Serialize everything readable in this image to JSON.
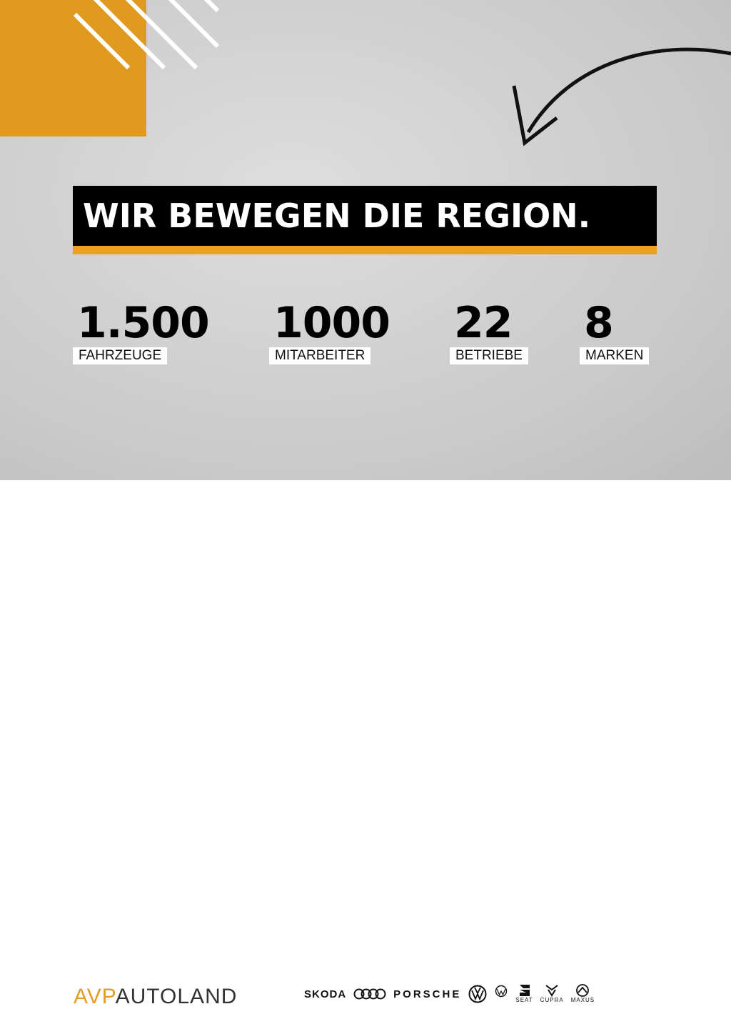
{
  "headline": "WIR BEWEGEN DIE REGION.",
  "stats": [
    {
      "value": "1.500",
      "label": "FAHRZEUGE"
    },
    {
      "value": "1000",
      "label": "MITARBEITER"
    },
    {
      "value": "22",
      "label": "BETRIEBE"
    },
    {
      "value": "8",
      "label": "MARKEN"
    }
  ],
  "logo": {
    "part1": "AVP",
    "part2": "AUTOLAND"
  },
  "brands": {
    "skoda": "SKODA",
    "porsche": "PORSCHE",
    "seat": "SEAT",
    "cupra": "CUPRA",
    "maxus": "MAXUS"
  },
  "colors": {
    "accent": "#e09a1e",
    "black": "#000000"
  }
}
